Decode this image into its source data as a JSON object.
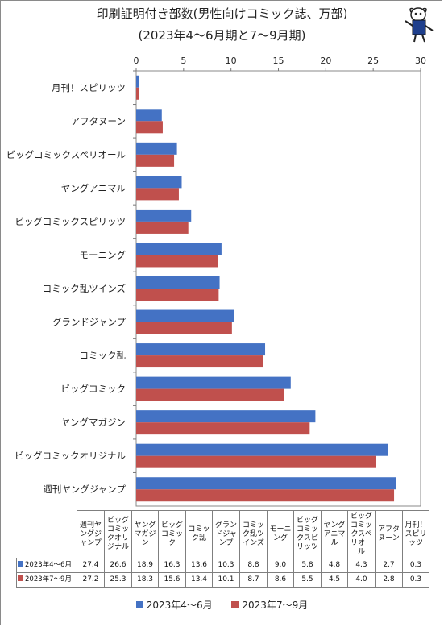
{
  "title": "印刷証明付き部数(男性向けコミック誌、万部)",
  "subtitle": "(2023年4〜6月期と7〜9月期)",
  "colors": {
    "s1": "#4472c4",
    "s2": "#c0504d"
  },
  "chart_data": {
    "type": "bar",
    "orientation": "horizontal",
    "title": "印刷証明付き部数(男性向けコミック誌、万部)",
    "subtitle": "(2023年4〜6月期と7〜9月期)",
    "x_ticks": [
      "0",
      "5",
      "10",
      "15",
      "20",
      "25",
      "30"
    ],
    "xlim": [
      0,
      30
    ],
    "grid": false,
    "legend_position": "bottom",
    "categories": [
      "月刊！スピリッツ",
      "アフタヌーン",
      "ビッグコミックスペリオール",
      "ヤングアニマル",
      "ビッグコミックスピリッツ",
      "モーニング",
      "コミック乱ツインズ",
      "グランドジャンプ",
      "コミック乱",
      "ビッグコミック",
      "ヤングマガジン",
      "ビッグコミックオリジナル",
      "週刊ヤングジャンプ"
    ],
    "series": [
      {
        "name": "2023年4〜6月",
        "values": [
          0.3,
          2.7,
          4.3,
          4.8,
          5.8,
          9.0,
          8.8,
          10.3,
          13.6,
          16.3,
          18.9,
          26.6,
          27.4
        ]
      },
      {
        "name": "2023年7〜9月",
        "values": [
          0.3,
          2.8,
          4.0,
          4.5,
          5.5,
          8.6,
          8.7,
          10.1,
          13.4,
          15.6,
          18.3,
          25.3,
          27.2
        ]
      }
    ]
  },
  "table": {
    "headers": [
      "週刊ヤングジャンプ",
      "ビッグコミックオリジナル",
      "ヤングマガジン",
      "ビッグコミック",
      "コミック乱",
      "グランドジャンプ",
      "コミック乱ツインズ",
      "モーニング",
      "ビッグコミックスピリッツ",
      "ヤングアニマル",
      "ビッグコミックスペリオール",
      "アフタヌーン",
      "月刊！スピリッツ"
    ],
    "rows": [
      {
        "label": "2023年4〜6月",
        "values": [
          "27.4",
          "26.6",
          "18.9",
          "16.3",
          "13.6",
          "10.3",
          "8.8",
          "9.0",
          "5.8",
          "4.8",
          "4.3",
          "2.7",
          "0.3"
        ]
      },
      {
        "label": "2023年7〜9月",
        "values": [
          "27.2",
          "25.3",
          "18.3",
          "15.6",
          "13.4",
          "10.1",
          "8.7",
          "8.6",
          "5.5",
          "4.5",
          "4.0",
          "2.8",
          "0.3"
        ]
      }
    ]
  },
  "legend": [
    {
      "label": "2023年4〜6月"
    },
    {
      "label": "2023年7〜9月"
    }
  ]
}
